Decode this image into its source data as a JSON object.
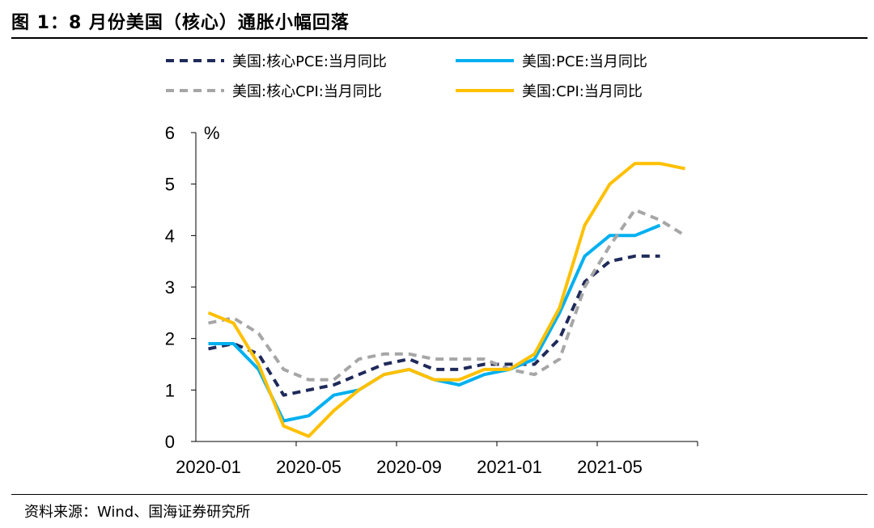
{
  "title": "图 1：8 月份美国（核心）通胀小幅回落",
  "source": "资料来源：Wind、国海证券研究所",
  "chart_data": {
    "type": "line",
    "ylabel": "%",
    "ylim": [
      0,
      6
    ],
    "yticks": [
      "0",
      "1",
      "2",
      "3",
      "4",
      "5",
      "6"
    ],
    "x": [
      "2020-01",
      "2020-02",
      "2020-03",
      "2020-04",
      "2020-05",
      "2020-06",
      "2020-07",
      "2020-08",
      "2020-09",
      "2020-10",
      "2020-11",
      "2020-12",
      "2021-01",
      "2021-02",
      "2021-03",
      "2021-04",
      "2021-05",
      "2021-06",
      "2021-07",
      "2021-08"
    ],
    "xtick_labels": [
      "2020-01",
      "2020-05",
      "2020-09",
      "2021-01",
      "2021-05"
    ],
    "legend_position": "top",
    "series": [
      {
        "name": "美国:核心PCE:当月同比",
        "color": "#1f2a5a",
        "dash": "10,7",
        "values": [
          1.8,
          1.9,
          1.7,
          0.9,
          1.0,
          1.1,
          1.3,
          1.5,
          1.6,
          1.4,
          1.4,
          1.5,
          1.5,
          1.5,
          2.0,
          3.1,
          3.5,
          3.6,
          3.6,
          null
        ]
      },
      {
        "name": "美国:PCE:当月同比",
        "color": "#00b0f0",
        "dash": "",
        "values": [
          1.9,
          1.9,
          1.4,
          0.4,
          0.5,
          0.9,
          1.0,
          1.3,
          1.4,
          1.2,
          1.1,
          1.3,
          1.4,
          1.6,
          2.5,
          3.6,
          4.0,
          4.0,
          4.2,
          null
        ]
      },
      {
        "name": "美国:核心CPI:当月同比",
        "color": "#a6a6a6",
        "dash": "10,7",
        "values": [
          2.3,
          2.4,
          2.1,
          1.4,
          1.2,
          1.2,
          1.6,
          1.7,
          1.7,
          1.6,
          1.6,
          1.6,
          1.4,
          1.3,
          1.6,
          3.0,
          3.8,
          4.5,
          4.3,
          4.0
        ]
      },
      {
        "name": "美国:CPI:当月同比",
        "color": "#ffc000",
        "dash": "",
        "values": [
          2.5,
          2.3,
          1.5,
          0.3,
          0.1,
          0.6,
          1.0,
          1.3,
          1.4,
          1.2,
          1.2,
          1.4,
          1.4,
          1.7,
          2.6,
          4.2,
          5.0,
          5.4,
          5.4,
          5.3
        ]
      }
    ]
  }
}
